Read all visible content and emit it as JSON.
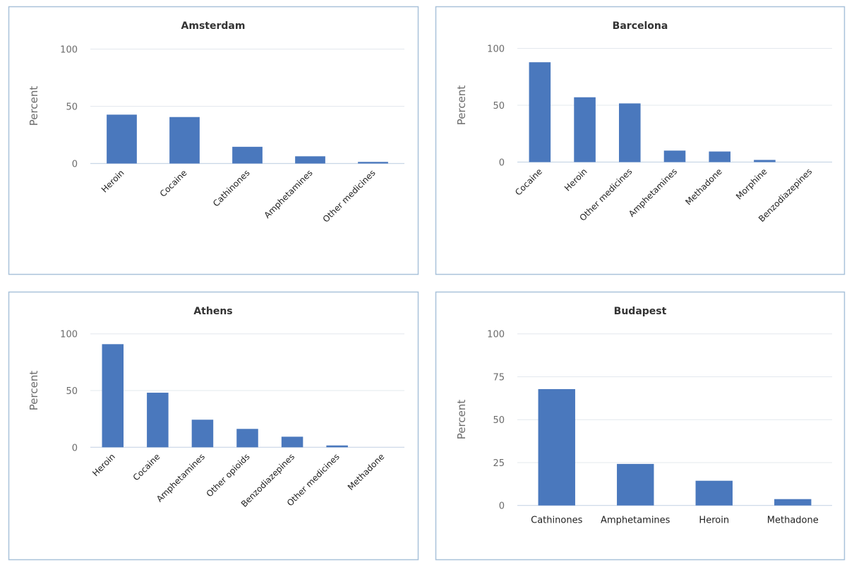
{
  "colors": {
    "bar": "#4a78bd",
    "frame": "#a9c2da",
    "grid": "#e3e8ee"
  },
  "chart_data": [
    {
      "type": "bar",
      "title": "Amsterdam",
      "xlabel": "",
      "ylabel": "Percent",
      "ylim": [
        0,
        100
      ],
      "yticks": [
        0,
        50,
        100
      ],
      "grid": true,
      "x_label_rotation": "diagonal",
      "categories": [
        "Heroin",
        "Cocaine",
        "Cathinones",
        "Amphetamines",
        "Other medicines"
      ],
      "values": [
        42.7,
        40.6,
        14.6,
        6.3,
        1.4
      ]
    },
    {
      "type": "bar",
      "title": "Barcelona",
      "xlabel": "",
      "ylabel": "Percent",
      "ylim": [
        0,
        100
      ],
      "yticks": [
        0,
        50,
        100
      ],
      "grid": true,
      "x_label_rotation": "diagonal",
      "categories": [
        "Cocaine",
        "Heroin",
        "Other medicines",
        "Amphetamines",
        "Methadone",
        "Morphine",
        "Benzodiazepines"
      ],
      "values": [
        87.8,
        57.0,
        51.6,
        10.1,
        9.3,
        1.9,
        0
      ]
    },
    {
      "type": "bar",
      "title": "Athens",
      "xlabel": "",
      "ylabel": "Percent",
      "ylim": [
        0,
        100
      ],
      "yticks": [
        0,
        50,
        100
      ],
      "grid": true,
      "x_label_rotation": "diagonal",
      "categories": [
        "Heroin",
        "Cocaine",
        "Amphetamines",
        "Other opioids",
        "Benzodiazepines",
        "Other medicines",
        "Methadone"
      ],
      "values": [
        90.9,
        48.1,
        24.3,
        16.2,
        9.3,
        1.6,
        0
      ]
    },
    {
      "type": "bar",
      "title": "Budapest",
      "xlabel": "",
      "ylabel": "Percent",
      "ylim": [
        0,
        100
      ],
      "yticks": [
        0,
        25,
        50,
        75,
        100
      ],
      "grid": true,
      "x_label_rotation": "horizontal",
      "categories": [
        "Cathinones",
        "Amphetamines",
        "Heroin",
        "Methadone"
      ],
      "values": [
        67.8,
        24.2,
        14.4,
        3.7
      ]
    }
  ]
}
